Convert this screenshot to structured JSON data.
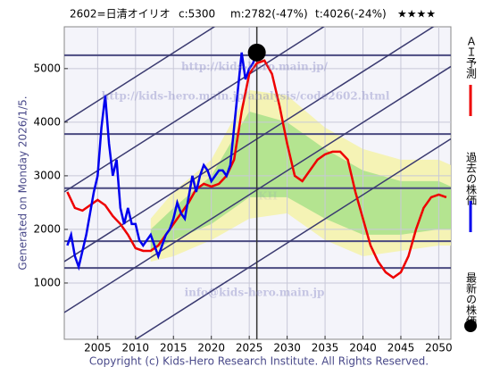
{
  "chart_data": {
    "type": "line",
    "title_parts": [
      "2602=日清オイリオ",
      "c:5300",
      "m:2782(-47%)",
      "t:4026(-24%)",
      "★★★★"
    ],
    "side_label": "Generated on Monday 2026/1/5.",
    "footer": "Copyright (c) Kids-Hero Research Institute. All Rights Reserved.",
    "watermarks": [
      "http://kids-hero.main.jp/",
      "http://kids-hero.main.jp/analysis/code2602.html",
      "info@kids-hero.main.jp",
      "KH"
    ],
    "xlim": [
      2000.6,
      2051.6
    ],
    "ylim": [
      -50,
      5780
    ],
    "xticks": [
      2005,
      2010,
      2015,
      2020,
      2025,
      2030,
      2035,
      2040,
      2045,
      2050
    ],
    "yticks": [
      1000,
      2000,
      3000,
      4000,
      5000
    ],
    "grid": true,
    "levels": [
      5250,
      3780,
      2770,
      1780,
      1280
    ],
    "trend_lines": [
      {
        "x": [
          2000.6,
          2051.6
        ],
        "y": [
          4000,
          8590
        ]
      },
      {
        "x": [
          2000.6,
          2051.6
        ],
        "y": [
          2700,
          7290
        ]
      },
      {
        "x": [
          2000.6,
          2051.6
        ],
        "y": [
          1400,
          5990
        ]
      },
      {
        "x": [
          2000.6,
          2051.6
        ],
        "y": [
          450,
          5040
        ]
      },
      {
        "x": [
          2000.6,
          2051.6
        ],
        "y": [
          -900,
          3690
        ]
      }
    ],
    "bands": [
      {
        "color": "#f4f2a8",
        "x": [
          2012,
          2015,
          2020,
          2025,
          2030,
          2035,
          2040,
          2045,
          2050,
          2051.6
        ],
        "upper": [
          2200,
          2700,
          3300,
          4600,
          4500,
          3900,
          3500,
          3300,
          3300,
          3200
        ],
        "lower": [
          1400,
          1500,
          1800,
          2200,
          2300,
          1800,
          1500,
          1600,
          1700,
          1700
        ]
      },
      {
        "color": "#a8e08a",
        "x": [
          2012,
          2015,
          2020,
          2025,
          2030,
          2035,
          2040,
          2045,
          2050,
          2051.6
        ],
        "upper": [
          2000,
          2400,
          3000,
          4200,
          4000,
          3500,
          3100,
          2900,
          2900,
          2800
        ],
        "lower": [
          1600,
          1800,
          2100,
          2600,
          2600,
          2200,
          1900,
          1900,
          2000,
          2000
        ]
      }
    ],
    "current_x": 2026,
    "series": [
      {
        "name": "ＡＩ予測",
        "color": "#ee0000",
        "x": [
          2001,
          2002,
          2003,
          2004,
          2005,
          2006,
          2007,
          2008,
          2009,
          2010,
          2011,
          2012,
          2013,
          2014,
          2015,
          2016,
          2017,
          2018,
          2019,
          2020,
          2021,
          2022,
          2023,
          2024,
          2025,
          2026,
          2027,
          2028,
          2029,
          2030,
          2031,
          2032,
          2033,
          2034,
          2035,
          2036,
          2037,
          2038,
          2039,
          2040,
          2041,
          2042,
          2043,
          2044,
          2045,
          2046,
          2047,
          2048,
          2049,
          2050,
          2051
        ],
        "values": [
          2700,
          2400,
          2350,
          2450,
          2550,
          2450,
          2250,
          2100,
          1900,
          1650,
          1600,
          1600,
          1700,
          1900,
          2100,
          2300,
          2500,
          2750,
          2850,
          2800,
          2850,
          3000,
          3300,
          4200,
          4900,
          5100,
          5150,
          4900,
          4300,
          3600,
          3000,
          2900,
          3100,
          3300,
          3400,
          3450,
          3450,
          3300,
          2700,
          2200,
          1700,
          1400,
          1200,
          1100,
          1200,
          1500,
          2000,
          2400,
          2600,
          2650,
          2600
        ]
      },
      {
        "name": "過去の株価",
        "color": "#0000ee",
        "x": [
          2001,
          2001.5,
          2002,
          2002.5,
          2003,
          2003.5,
          2004,
          2004.5,
          2005,
          2005.5,
          2006,
          2006.5,
          2007,
          2007.5,
          2008,
          2008.5,
          2009,
          2009.5,
          2010,
          2010.5,
          2011,
          2011.5,
          2012,
          2012.5,
          2013,
          2013.5,
          2014,
          2014.5,
          2015,
          2015.5,
          2016,
          2016.5,
          2017,
          2017.5,
          2018,
          2018.5,
          2019,
          2019.5,
          2020,
          2020.5,
          2021,
          2021.5,
          2022,
          2022.5,
          2023,
          2023.5,
          2024,
          2024.5,
          2025,
          2025.5,
          2026
        ],
        "values": [
          1700,
          1900,
          1500,
          1300,
          1600,
          1900,
          2300,
          2700,
          3000,
          3900,
          4500,
          3600,
          3000,
          3300,
          2400,
          2100,
          2400,
          2100,
          2100,
          1800,
          1700,
          1800,
          1900,
          1700,
          1500,
          1700,
          1900,
          2000,
          2200,
          2500,
          2300,
          2200,
          2600,
          3000,
          2700,
          3000,
          3200,
          3100,
          2900,
          3000,
          3100,
          3100,
          3000,
          3200,
          3900,
          4600,
          5300,
          4800,
          5000,
          5100,
          5300
        ]
      },
      {
        "name": "最新の株価",
        "color": "#000000",
        "x": [
          2026
        ],
        "values": [
          5300
        ]
      }
    ]
  }
}
